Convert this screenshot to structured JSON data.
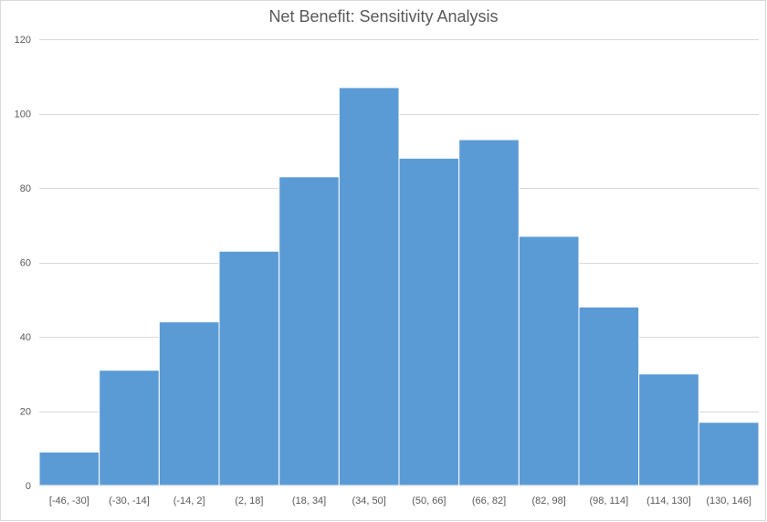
{
  "chart_data": {
    "type": "bar",
    "title": "Net Benefit: Sensitivity Analysis",
    "xlabel": "",
    "ylabel": "",
    "categories": [
      "[-46, -30]",
      "(-30, -14]",
      "(-14, 2]",
      "(2, 18]",
      "(18, 34]",
      "(34, 50]",
      "(50, 66]",
      "(66, 82]",
      "(82, 98]",
      "(98, 114]",
      "(114, 130]",
      "(130, 146]"
    ],
    "values": [
      9,
      31,
      44,
      63,
      83,
      107,
      88,
      93,
      67,
      48,
      30,
      17
    ],
    "ylim": [
      0,
      120
    ],
    "yticks": [
      0,
      20,
      40,
      60,
      80,
      100,
      120
    ],
    "grid": true,
    "legend": "none",
    "bar_color": "#5b9bd5",
    "gap_width": 0
  }
}
